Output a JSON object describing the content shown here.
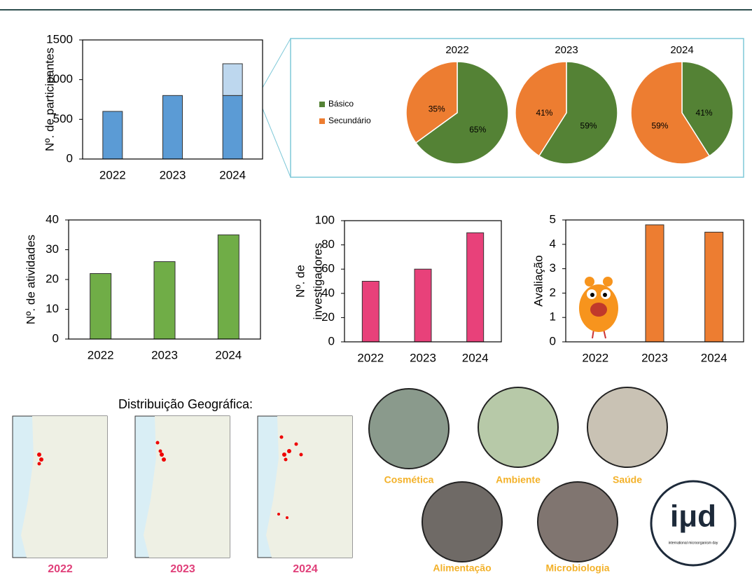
{
  "chart_data": [
    {
      "type": "bar",
      "ylabel": "Nº. de participantes",
      "categories": [
        "2022",
        "2023",
        "2024"
      ],
      "stacked": true,
      "series": [
        {
          "color": "#5b9bd5",
          "values": [
            600,
            800,
            800
          ]
        },
        {
          "color": "#bdd7ee",
          "values": [
            null,
            null,
            400
          ]
        }
      ],
      "ylim": [
        0,
        1500
      ],
      "yticks": [
        0,
        500,
        1000,
        1500
      ]
    },
    {
      "type": "pie",
      "categories": [
        "Básico",
        "Secundário"
      ],
      "colors": [
        "#548235",
        "#ed7d31"
      ],
      "pies": [
        {
          "title": "2022",
          "values": [
            65,
            35
          ],
          "value_labels": [
            "65%",
            "35%"
          ]
        },
        {
          "title": "2023",
          "values": [
            59,
            41
          ],
          "value_labels": [
            "59%",
            "41%"
          ]
        },
        {
          "title": "2024",
          "values": [
            41,
            59
          ],
          "value_labels": [
            "41%",
            "59%"
          ]
        }
      ]
    },
    {
      "type": "bar",
      "ylabel": "Nº. de atividades",
      "categories": [
        "2022",
        "2023",
        "2024"
      ],
      "values": [
        22,
        26,
        35
      ],
      "color": "#70ad47",
      "ylim": [
        0,
        40
      ],
      "yticks": [
        0,
        10,
        20,
        30,
        40
      ]
    },
    {
      "type": "bar",
      "ylabel": [
        "Nº. de",
        "investigadores"
      ],
      "categories": [
        "2022",
        "2023",
        "2024"
      ],
      "values": [
        50,
        60,
        90
      ],
      "color": "#e8417a",
      "ylim": [
        0,
        100
      ],
      "yticks": [
        0,
        20,
        40,
        60,
        80,
        100
      ]
    },
    {
      "type": "bar",
      "ylabel": "Avaliação",
      "categories": [
        "2022",
        "2023",
        "2024"
      ],
      "values": [
        null,
        4.8,
        4.5
      ],
      "color": "#ed7d31",
      "ylim": [
        0,
        5
      ],
      "yticks": [
        0,
        1,
        2,
        3,
        4,
        5
      ]
    }
  ],
  "maps": {
    "title": "Distribuição Geográfica:",
    "years": [
      "2022",
      "2023",
      "2024"
    ]
  },
  "photos": [
    "Cosmética",
    "Ambiente",
    "Saúde",
    "Alimentação",
    "Microbiologia"
  ],
  "logo": {
    "mark": "iμd",
    "caption": "international microorganism day"
  }
}
